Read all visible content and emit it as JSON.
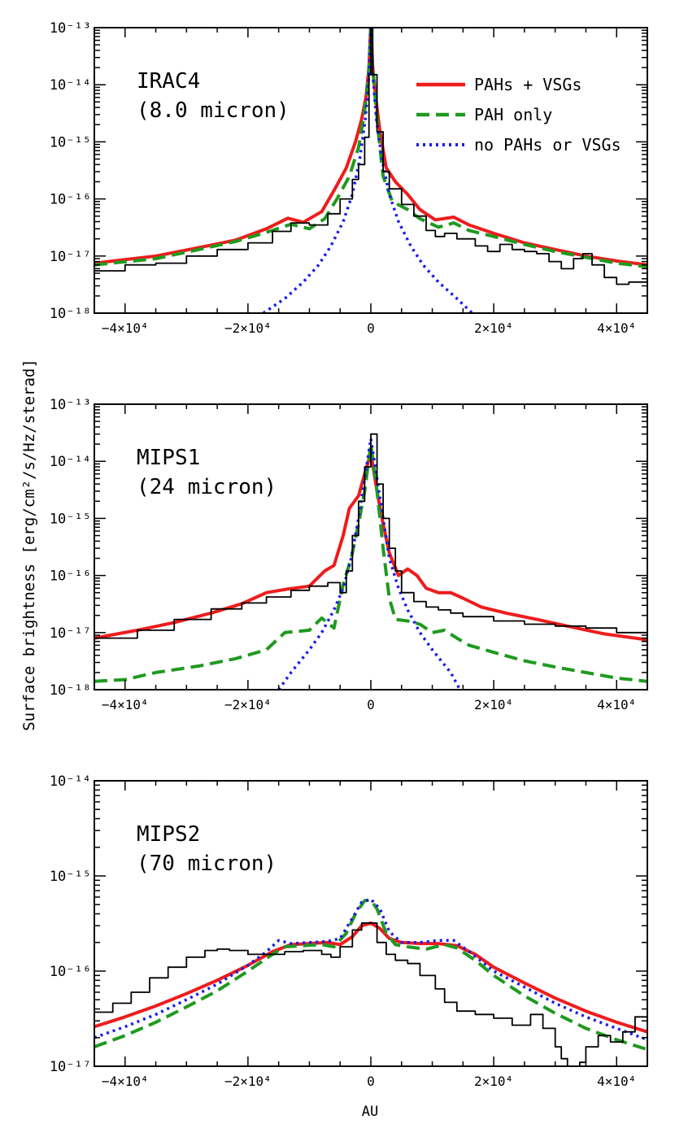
{
  "figure": {
    "ylabel": "Surface brightness [erg/cm²/s/Hz/sterad]",
    "xlabel": "AU"
  },
  "legend": {
    "entries": [
      {
        "label": "PAHs + VSGs",
        "color": "#ee1c1c",
        "style": "solid"
      },
      {
        "label": "PAH only",
        "color": "#1f9a1f",
        "style": "dashed"
      },
      {
        "label": "no PAHs or VSGs",
        "color": "#1c1ce6",
        "style": "dotted"
      }
    ]
  },
  "chart_data": [
    {
      "type": "line",
      "annotation_line1": "IRAC4",
      "annotation_line2": "(8.0 micron)",
      "x_tick_labels": [
        "−4×10⁴",
        "−2×10⁴",
        "0",
        "2×10⁴",
        "4×10⁴"
      ],
      "y_tick_labels": [
        "10⁻¹³",
        "10⁻¹⁴",
        "10⁻¹⁵",
        "10⁻¹⁶",
        "10⁻¹⁷",
        "10⁻¹⁸"
      ],
      "xlim": [
        -45000,
        45000
      ],
      "ylim": [
        1e-18,
        1e-13
      ],
      "yscale": "log",
      "series": [
        {
          "name": "PAHs + VSGs",
          "x": [
            -45000,
            -35000,
            -28000,
            -22000,
            -17000,
            -13500,
            -11000,
            -8000,
            -6000,
            -4000,
            -2500,
            -1500,
            -800,
            -300,
            0,
            300,
            800,
            1500,
            2500,
            4000,
            6000,
            8000,
            10500,
            13500,
            16000,
            20000,
            25000,
            30000,
            35000,
            40000,
            45000
          ],
          "y": [
            7.5e-18,
            1e-17,
            1.4e-17,
            1.9e-17,
            3e-17,
            4.6e-17,
            3.9e-17,
            6e-17,
            1.4e-16,
            3.5e-16,
            1e-15,
            2.5e-15,
            6e-15,
            2e-14,
            1.2e-13,
            2e-14,
            6e-15,
            1.5e-15,
            3.5e-16,
            2e-16,
            1.2e-16,
            6.5e-17,
            4.3e-17,
            4.8e-17,
            3.5e-17,
            2.5e-17,
            1.7e-17,
            1.3e-17,
            1e-17,
            8.2e-18,
            7e-18
          ]
        },
        {
          "name": "PAH only",
          "x": [
            -45000,
            -35000,
            -28000,
            -22000,
            -17000,
            -13000,
            -10000,
            -7500,
            -5500,
            -3500,
            -2000,
            -1200,
            -600,
            -200,
            0,
            200,
            600,
            1200,
            2000,
            3500,
            6000,
            8000,
            11000,
            13500,
            16000,
            20000,
            25000,
            30000,
            35000,
            40000,
            45000
          ],
          "y": [
            7e-18,
            9e-18,
            1.3e-17,
            1.8e-17,
            2.6e-17,
            3.6e-17,
            3e-17,
            4.5e-17,
            1e-16,
            2.5e-16,
            8e-16,
            2.5e-15,
            8e-15,
            3e-14,
            1.1e-13,
            3e-14,
            8e-15,
            1.5e-15,
            2.5e-16,
            9e-17,
            6.5e-17,
            4.5e-17,
            3.2e-17,
            3.8e-17,
            2.8e-17,
            2.2e-17,
            1.6e-17,
            1.2e-17,
            9.5e-18,
            7.5e-18,
            6.5e-18
          ]
        },
        {
          "name": "no PAHs or VSGs",
          "x": [
            -17500,
            -14000,
            -11000,
            -8500,
            -6500,
            -4500,
            -3000,
            -1800,
            -900,
            -300,
            0,
            300,
            900,
            1800,
            3000,
            4500,
            6500,
            8500,
            11000,
            14000,
            16500
          ],
          "y": [
            1e-18,
            1.8e-18,
            3.5e-18,
            7e-18,
            1.5e-17,
            4e-17,
            1.2e-16,
            5e-16,
            2.5e-15,
            1.5e-14,
            1.1e-13,
            1.5e-14,
            2.5e-15,
            5e-16,
            1.2e-16,
            4e-17,
            1.5e-17,
            7e-18,
            3.5e-18,
            1.8e-18,
            1e-18
          ]
        },
        {
          "name": "",
          "x": [
            -45000,
            -40000,
            -35000,
            -30000,
            -25000,
            -20000,
            -16000,
            -13000,
            -10000,
            -7000,
            -5000,
            -3000,
            -2000,
            -1000,
            -300,
            0,
            300,
            1000,
            2000,
            3000,
            5000,
            7000,
            9000,
            10500,
            12000,
            14000,
            17000,
            19000,
            21000,
            23000,
            25000,
            27000,
            29000,
            31000,
            33000,
            34500,
            36000,
            38000,
            40000,
            42000,
            45000
          ],
          "y": [
            5.5e-18,
            7e-18,
            7.5e-18,
            1e-17,
            1.3e-17,
            1.7e-17,
            2.7e-17,
            3.8e-17,
            3.5e-17,
            5.5e-17,
            1e-16,
            2.2e-16,
            4e-16,
            1.2e-15,
            1.5e-14,
            1.2e-13,
            1.5e-14,
            1.5e-15,
            3e-16,
            1.5e-16,
            8e-17,
            5e-17,
            2.8e-17,
            2.2e-17,
            2.5e-17,
            2e-17,
            1.5e-17,
            1.2e-17,
            1.6e-17,
            1.3e-17,
            1.2e-17,
            1.1e-17,
            8e-18,
            6e-18,
            9e-18,
            1.1e-17,
            7e-18,
            4.2e-18,
            3.2e-18,
            3.5e-18,
            4.2e-18
          ]
        }
      ]
    },
    {
      "type": "line",
      "annotation_line1": "MIPS1",
      "annotation_line2": "(24 micron)",
      "x_tick_labels": [
        "−4×10⁴",
        "−2×10⁴",
        "0",
        "2×10⁴",
        "4×10⁴"
      ],
      "y_tick_labels": [
        "10⁻¹³",
        "10⁻¹⁴",
        "10⁻¹⁵",
        "10⁻¹⁶",
        "10⁻¹⁷",
        "10⁻¹⁸"
      ],
      "xlim": [
        -45000,
        45000
      ],
      "ylim": [
        1e-18,
        1e-13
      ],
      "yscale": "log",
      "series": [
        {
          "name": "PAHs + VSGs",
          "x": [
            -45000,
            -38000,
            -32000,
            -26000,
            -21000,
            -17000,
            -13500,
            -10000,
            -7500,
            -6000,
            -4500,
            -3500,
            -2000,
            -1000,
            0,
            1000,
            2000,
            3000,
            4500,
            6000,
            7500,
            9000,
            11000,
            13000,
            15000,
            18000,
            22000,
            27000,
            32000,
            38000,
            45000
          ],
          "y": [
            8e-18,
            1.1e-17,
            1.5e-17,
            2.2e-17,
            3.2e-17,
            5e-17,
            5.8e-17,
            6.5e-17,
            1.2e-16,
            1.5e-16,
            5e-16,
            1.5e-15,
            2.5e-15,
            6e-15,
            1.4e-14,
            3e-15,
            8e-16,
            2.5e-16,
            1e-16,
            1.3e-16,
            1e-16,
            6e-17,
            5e-17,
            5e-17,
            4e-17,
            2.8e-17,
            2.2e-17,
            1.7e-17,
            1.3e-17,
            9.5e-18,
            7.5e-18
          ]
        },
        {
          "name": "PAH only",
          "x": [
            -45000,
            -40000,
            -35000,
            -28000,
            -22000,
            -17000,
            -14000,
            -10000,
            -8000,
            -6000,
            -4500,
            -3200,
            -2000,
            -1000,
            0,
            1000,
            2000,
            3000,
            4000,
            6000,
            8000,
            10000,
            12000,
            14000,
            16000,
            20000,
            25000,
            30000,
            35000,
            40000,
            45000
          ],
          "y": [
            1.4e-18,
            1.5e-18,
            2e-18,
            2.6e-18,
            3.5e-18,
            5e-18,
            1e-17,
            1.1e-17,
            1.8e-17,
            1.2e-17,
            7e-17,
            2e-16,
            8e-16,
            3e-15,
            2e-14,
            3e-15,
            3e-16,
            4e-17,
            1.7e-17,
            1.6e-17,
            1.4e-17,
            1e-17,
            1.1e-17,
            8e-18,
            6e-18,
            4.5e-18,
            3.2e-18,
            2.5e-18,
            2e-18,
            1.6e-18,
            1.4e-18
          ]
        },
        {
          "name": "no PAHs or VSGs",
          "x": [
            -15000,
            -13000,
            -10000,
            -8000,
            -6000,
            -4500,
            -3200,
            -2000,
            -1000,
            0,
            1000,
            2000,
            3000,
            4500,
            6000,
            8000,
            10000,
            13000,
            14500
          ],
          "y": [
            1e-18,
            2e-18,
            5e-18,
            1e-17,
            2.5e-17,
            6e-17,
            2e-16,
            1e-15,
            5e-15,
            2.5e-14,
            5e-15,
            1e-15,
            2e-16,
            6e-17,
            2.5e-17,
            1e-17,
            5e-18,
            2e-18,
            1e-18
          ]
        },
        {
          "name": "",
          "x": [
            -45000,
            -38000,
            -32000,
            -26000,
            -21000,
            -17000,
            -13000,
            -10000,
            -7000,
            -5000,
            -4000,
            -3000,
            -2000,
            -1000,
            0,
            1000,
            2000,
            3000,
            4000,
            5000,
            7000,
            9000,
            11000,
            13000,
            15000,
            20000,
            25000,
            30000,
            35000,
            40000,
            45000
          ],
          "y": [
            8e-18,
            1.1e-17,
            1.7e-17,
            2.6e-17,
            3.3e-17,
            4.2e-17,
            5.5e-17,
            6.5e-17,
            7.5e-17,
            5e-17,
            1.2e-16,
            5e-16,
            2e-15,
            8e-15,
            3e-14,
            4e-15,
            1e-15,
            3e-16,
            1.2e-16,
            5e-17,
            3.5e-17,
            2.8e-17,
            2.5e-17,
            2.2e-17,
            1.9e-17,
            1.6e-17,
            1.4e-17,
            1.3e-17,
            1.2e-17,
            1e-17,
            5.5e-18
          ]
        }
      ]
    },
    {
      "type": "line",
      "annotation_line1": "MIPS2",
      "annotation_line2": "(70 micron)",
      "x_tick_labels": [
        "−4×10⁴",
        "−2×10⁴",
        "0",
        "2×10⁴",
        "4×10⁴"
      ],
      "y_tick_labels": [
        "10⁻¹⁴",
        "10⁻¹⁵",
        "10⁻¹⁶",
        "10⁻¹⁷"
      ],
      "xlim": [
        -45000,
        45000
      ],
      "ylim": [
        1e-17,
        1e-14
      ],
      "yscale": "log",
      "series": [
        {
          "name": "PAHs + VSGs",
          "x": [
            -45000,
            -40000,
            -35000,
            -30000,
            -25000,
            -20000,
            -16000,
            -13000,
            -10000,
            -7000,
            -5000,
            -3000,
            -1500,
            0,
            1500,
            3000,
            5000,
            8000,
            11000,
            14000,
            17000,
            20000,
            25000,
            30000,
            35000,
            40000,
            45000
          ],
          "y": [
            2.6e-17,
            3.3e-17,
            4.3e-17,
            5.8e-17,
            8e-17,
            1.15e-16,
            1.6e-16,
            1.9e-16,
            1.95e-16,
            2e-16,
            1.9e-16,
            2.3e-16,
            3e-16,
            3.2e-16,
            2.8e-16,
            2.2e-16,
            2e-16,
            1.95e-16,
            1.95e-16,
            1.85e-16,
            1.5e-16,
            1.1e-16,
            7.5e-17,
            5.2e-17,
            3.8e-17,
            2.9e-17,
            2.3e-17
          ]
        },
        {
          "name": "PAH only",
          "x": [
            -45000,
            -40000,
            -35000,
            -30000,
            -25000,
            -20000,
            -16000,
            -14000,
            -11000,
            -8000,
            -6000,
            -4000,
            -2500,
            -1000,
            0,
            1000,
            2500,
            4000,
            6000,
            9000,
            12000,
            14000,
            17000,
            20000,
            25000,
            30000,
            35000,
            40000,
            45000
          ],
          "y": [
            1.6e-17,
            2.1e-17,
            2.9e-17,
            4.2e-17,
            6.2e-17,
            1e-16,
            1.5e-16,
            1.8e-16,
            1.85e-16,
            1.9e-16,
            1.8e-16,
            2.5e-16,
            4e-16,
            5.5e-16,
            5.6e-16,
            4.5e-16,
            2.5e-16,
            1.9e-16,
            1.8e-16,
            1.7e-16,
            1.9e-16,
            1.75e-16,
            1.3e-16,
            9e-17,
            5.5e-17,
            3.6e-17,
            2.5e-17,
            1.9e-17,
            1.5e-17
          ]
        },
        {
          "name": "no PAHs or VSGs",
          "x": [
            -45000,
            -40000,
            -35000,
            -30000,
            -25000,
            -20000,
            -17000,
            -15000,
            -13000,
            -10000,
            -7000,
            -5000,
            -3000,
            -1500,
            0,
            1500,
            3000,
            5000,
            8000,
            11000,
            13500,
            16000,
            20000,
            25000,
            30000,
            35000,
            40000,
            45000
          ],
          "y": [
            2e-17,
            2.6e-17,
            3.5e-17,
            5e-17,
            7.3e-17,
            1.15e-16,
            1.6e-16,
            2.1e-16,
            1.95e-16,
            2e-16,
            2.05e-16,
            2.2e-16,
            3.6e-16,
            5.3e-16,
            5.7e-16,
            4.5e-16,
            2.6e-16,
            2e-16,
            2e-16,
            2.1e-16,
            2.1e-16,
            1.6e-16,
            1e-16,
            6.8e-17,
            4.6e-17,
            3.3e-17,
            2.5e-17,
            1.9e-17
          ]
        },
        {
          "name": "",
          "x": [
            -45000,
            -42000,
            -39000,
            -36000,
            -33000,
            -30000,
            -27000,
            -25000,
            -23000,
            -20000,
            -17000,
            -14000,
            -11000,
            -9000,
            -8000,
            -6500,
            -5000,
            -3000,
            -1500,
            0,
            1000,
            2500,
            4000,
            6000,
            8000,
            10500,
            12000,
            14000,
            17000,
            20000,
            23000,
            26000,
            28000,
            30000,
            31000,
            32000,
            33000,
            34000,
            35000,
            37000,
            39000,
            41000,
            43000,
            45000
          ],
          "y": [
            3.7e-17,
            4.6e-17,
            6e-17,
            8.5e-17,
            1.1e-16,
            1.4e-16,
            1.65e-16,
            1.7e-16,
            1.65e-16,
            1.5e-16,
            1.5e-16,
            1.6e-16,
            1.65e-16,
            1.65e-16,
            1.5e-16,
            1.4e-16,
            1.8e-16,
            2.7e-16,
            3.2e-16,
            3.2e-16,
            2e-16,
            1.5e-16,
            1.3e-16,
            1.2e-16,
            9e-17,
            6.5e-17,
            4.7e-17,
            3.8e-17,
            3.5e-17,
            3.2e-17,
            2.7e-17,
            3.5e-17,
            2.5e-17,
            1.6e-17,
            1.2e-17,
            9e-18,
            9e-18,
            1.1e-17,
            1.6e-17,
            2.1e-17,
            1.8e-17,
            2.3e-17,
            3.3e-17,
            5e-17
          ]
        }
      ]
    }
  ]
}
